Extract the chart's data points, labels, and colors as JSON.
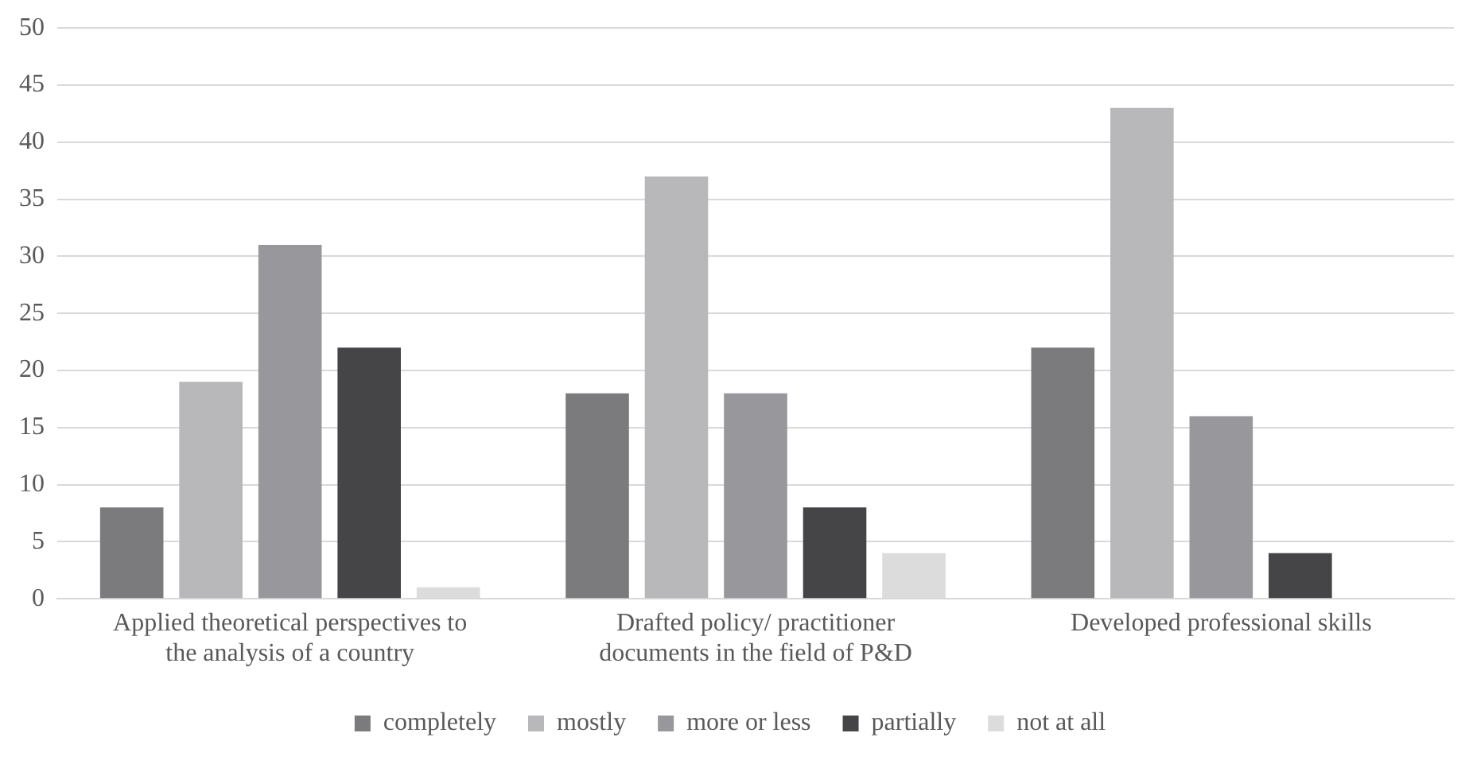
{
  "chart_data": {
    "type": "bar",
    "categories": [
      "Applied theoretical perspectives to the analysis of a country",
      "Drafted policy/ practitioner documents in the field of P&D",
      "Developed professional skills"
    ],
    "series": [
      {
        "name": "completely",
        "color": "#7b7b7d",
        "values": [
          8,
          18,
          22
        ]
      },
      {
        "name": "mostly",
        "color": "#b8b8bb",
        "values": [
          19,
          37,
          43
        ]
      },
      {
        "name": "more or less",
        "color": "#98989c",
        "values": [
          31,
          18,
          16
        ]
      },
      {
        "name": "partially",
        "color": "#454547",
        "values": [
          22,
          8,
          4
        ]
      },
      {
        "name": "not at all",
        "color": "#dcdcdc",
        "values": [
          1,
          4,
          0
        ]
      }
    ],
    "ylim": [
      0,
      50
    ],
    "yticks": [
      0,
      5,
      10,
      15,
      20,
      25,
      30,
      35,
      40,
      45,
      50
    ],
    "grid": "y",
    "legend": "bottom"
  }
}
